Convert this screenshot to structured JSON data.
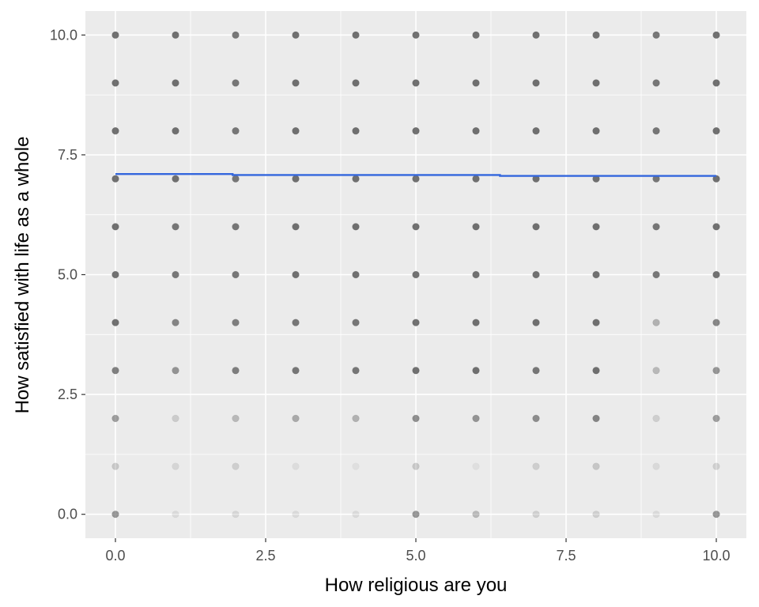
{
  "chart_data": {
    "type": "scatter",
    "xlabel": "How religious are you",
    "ylabel": "How satisfied with life as a whole",
    "xlim": [
      -0.5,
      10.5
    ],
    "ylim": [
      -0.5,
      10.5
    ],
    "x_ticks": [
      "0.0",
      "2.5",
      "5.0",
      "7.5",
      "10.0"
    ],
    "y_ticks": [
      "0.0",
      "2.5",
      "5.0",
      "7.5",
      "10.0"
    ],
    "x_tick_values": [
      0,
      2.5,
      5,
      7.5,
      10
    ],
    "y_tick_values": [
      0,
      2.5,
      5,
      7.5,
      10
    ],
    "grid": true,
    "legend": "none",
    "colors": {
      "panel": "#ebebeb",
      "grid": "#ffffff",
      "points": "#595959",
      "trend": "#3366dd"
    },
    "point_x_values": [
      0,
      1,
      2,
      3,
      4,
      5,
      6,
      7,
      8,
      9,
      10
    ],
    "point_y_values": [
      0,
      1,
      2,
      3,
      4,
      5,
      6,
      7,
      8,
      9,
      10
    ],
    "point_opacity_rows": [
      [
        0.6,
        0.12,
        0.15,
        0.12,
        0.12,
        0.6,
        0.35,
        0.2,
        0.2,
        0.12,
        0.6
      ],
      [
        0.25,
        0.15,
        0.2,
        0.1,
        0.08,
        0.25,
        0.08,
        0.2,
        0.25,
        0.12,
        0.2
      ],
      [
        0.55,
        0.22,
        0.35,
        0.45,
        0.4,
        0.65,
        0.6,
        0.65,
        0.7,
        0.2,
        0.55
      ],
      [
        0.75,
        0.6,
        0.75,
        0.8,
        0.8,
        0.85,
        0.85,
        0.8,
        0.85,
        0.35,
        0.6
      ],
      [
        0.85,
        0.7,
        0.75,
        0.8,
        0.8,
        0.85,
        0.85,
        0.85,
        0.85,
        0.4,
        0.7
      ],
      [
        0.85,
        0.8,
        0.8,
        0.85,
        0.85,
        0.85,
        0.85,
        0.85,
        0.85,
        0.8,
        0.85
      ],
      [
        0.85,
        0.8,
        0.8,
        0.85,
        0.85,
        0.85,
        0.85,
        0.85,
        0.85,
        0.8,
        0.85
      ],
      [
        0.85,
        0.85,
        0.8,
        0.85,
        0.85,
        0.85,
        0.85,
        0.85,
        0.85,
        0.8,
        0.85
      ],
      [
        0.85,
        0.85,
        0.8,
        0.85,
        0.85,
        0.85,
        0.85,
        0.85,
        0.85,
        0.8,
        0.85
      ],
      [
        0.85,
        0.85,
        0.8,
        0.85,
        0.85,
        0.85,
        0.85,
        0.85,
        0.85,
        0.8,
        0.85
      ],
      [
        0.85,
        0.85,
        0.8,
        0.85,
        0.85,
        0.85,
        0.85,
        0.85,
        0.85,
        0.8,
        0.85
      ]
    ],
    "trend_line": [
      {
        "x": 0,
        "y": 7.1
      },
      {
        "x": 1.95,
        "y": 7.1
      },
      {
        "x": 1.95,
        "y": 7.08
      },
      {
        "x": 6.4,
        "y": 7.08
      },
      {
        "x": 6.4,
        "y": 7.06
      },
      {
        "x": 10,
        "y": 7.06
      }
    ]
  }
}
